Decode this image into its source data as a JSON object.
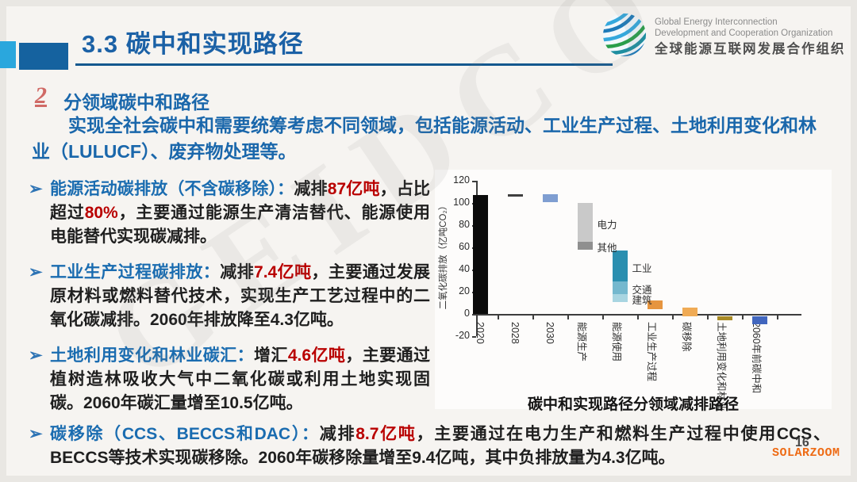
{
  "header": {
    "title": "3.3 碳中和实现路径",
    "logo": {
      "org_en_line1": "Global Energy Interconnection",
      "org_en_line2": "Development and Cooperation Organization",
      "org_cn": "全球能源互联网发展合作组织"
    }
  },
  "section": {
    "number": "2",
    "heading": "分领域碳中和路径",
    "intro": "实现全社会碳中和需要统筹考虑不同领域，包括能源活动、工业生产过程、土地利用变化和林业（LULUCF）、废弃物处理等。"
  },
  "icons": {
    "bullet": "➢"
  },
  "bullets": [
    {
      "lead": "能源活动碳排放（不含碳移除）：",
      "pre": "减排",
      "red1": "87亿吨",
      "mid": "，占比超过",
      "red2": "80%",
      "tail": "，主要通过能源生产清洁替代、能源使用电能替代实现碳减排。"
    },
    {
      "lead": "工业生产过程碳排放：",
      "pre": "减排",
      "red1": "7.4亿吨",
      "mid": "",
      "red2": "",
      "tail": "，主要通过发展原材料或燃料替代技术，实现生产工艺过程中的二氧化碳减排。2060年排放降至4.3亿吨。"
    },
    {
      "lead": "土地利用变化和林业碳汇：",
      "pre": "增汇",
      "red1": "4.6亿吨",
      "mid": "",
      "red2": "",
      "tail": "，主要通过植树造林吸收大气中二氧化碳或利用土地实现固碳。2060年碳汇量增至10.5亿吨。"
    },
    {
      "lead": "碳移除（CCS、BECCS和DAC）：",
      "pre": "减排",
      "red1": "8.7亿吨",
      "mid": "",
      "red2": "",
      "tail": "，主要通过在电力生产和燃料生产过程中使用CCS、BECCS等技术实现碳移除。2060年碳移除量增至9.4亿吨，其中负排放量为4.3亿吨。"
    }
  ],
  "chart_data": {
    "type": "bar",
    "subtype": "waterfall",
    "title": "碳中和实现路径分领域减排路径",
    "ylabel": "二氧化碳排放（亿吨CO₂）",
    "ylim": [
      -20,
      120
    ],
    "yticks": [
      120,
      100,
      80,
      60,
      40,
      20,
      0,
      -20
    ],
    "grid": false,
    "categories": [
      "2020",
      "2028",
      "2030",
      "能源生产",
      "能源使用",
      "工业生产过程",
      "碳移除",
      "土地利用变化和林业",
      "2060年前碳中和"
    ],
    "bars": [
      {
        "category": "2020",
        "start": 0,
        "end": 107,
        "color": "#0b0b0b"
      },
      {
        "category": "2028",
        "start": 106,
        "end": 108,
        "color": "#3f3f3f"
      },
      {
        "category": "2030",
        "start": 101,
        "end": 108,
        "color": "#7f9ed1"
      },
      {
        "category": "能源生产",
        "segments": [
          {
            "label": "电力",
            "start": 65,
            "end": 100,
            "color": "#c9c9c9"
          },
          {
            "label": "其他",
            "start": 58,
            "end": 65,
            "color": "#8f8f8f"
          }
        ]
      },
      {
        "category": "能源使用",
        "segments": [
          {
            "label": "工业",
            "start": 29,
            "end": 57,
            "color": "#2a8fb0"
          },
          {
            "label": "交通",
            "start": 18,
            "end": 29,
            "color": "#74b8ce"
          },
          {
            "label": "建筑",
            "start": 11,
            "end": 18,
            "color": "#a8d5e1"
          }
        ]
      },
      {
        "category": "工业生产过程",
        "start": 4,
        "end": 12,
        "color": "#e6953f"
      },
      {
        "category": "碳移除",
        "start": -2,
        "end": 6,
        "color": "#f0ab55"
      },
      {
        "category": "土地利用变化和林业",
        "start": -6,
        "end": -2,
        "color": "#a98b26"
      },
      {
        "category": "2060年前碳中和",
        "start": -9,
        "end": -2,
        "color": "#4166be"
      }
    ]
  },
  "footer": {
    "page_number": "16",
    "watermark_right": "SOLARZOOM",
    "watermark_background": "GEIDCO"
  },
  "colors": {
    "accent_blue": "#1b61a6",
    "lead_blue": "#1a6cb0",
    "emphasis_red": "#b90000",
    "deco_light_blue": "#2aa7dd",
    "deco_dark_blue": "#15629f",
    "watermark_orange": "#ee6b15",
    "axis_gray": "#3d3d3d"
  }
}
